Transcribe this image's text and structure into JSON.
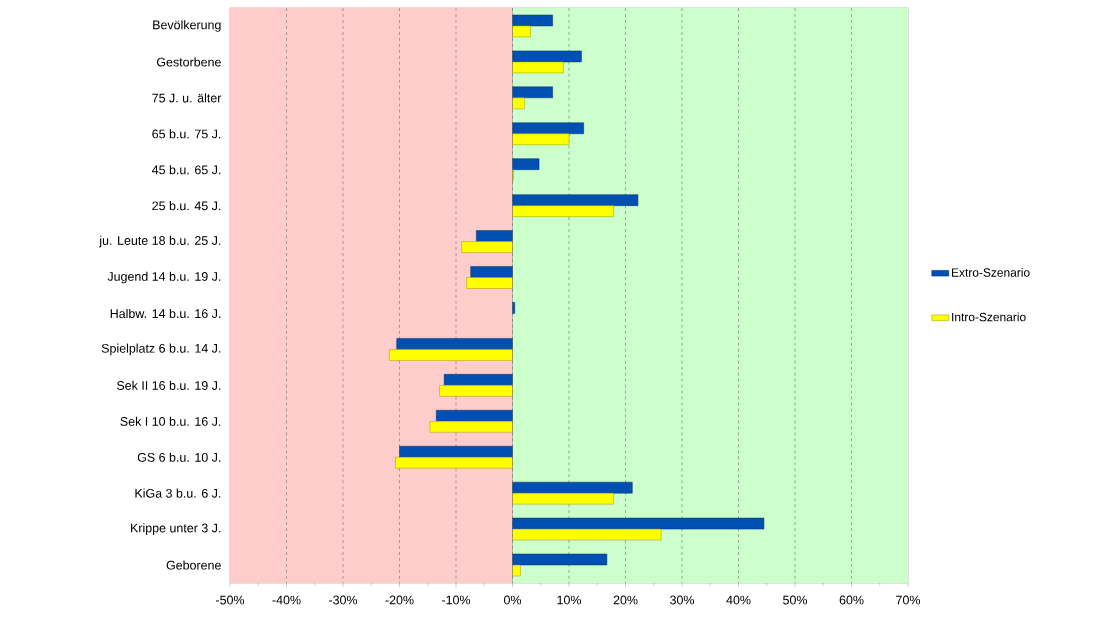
{
  "chart_data": {
    "type": "bar",
    "orientation": "horizontal",
    "categories": [
      "Bevölkerung",
      "Gestorbene",
      "75 J. u. älter",
      "65 b.u. 75 J.",
      "45 b.u. 65 J.",
      "25 b.u. 45 J.",
      "ju. Leute 18 b.u. 25 J.",
      "Jugend 14 b.u. 19 J.",
      "Halbw. 14 b.u. 16 J.",
      "Spielplatz 6 b.u. 14 J.",
      "Sek II 16 b.u. 19 J.",
      "Sek I 10 b.u. 16 J.",
      "GS 6 b.u. 10 J.",
      "KiGa 3 b.u. 6 J.",
      "Krippe unter 3 J.",
      "Geborene"
    ],
    "series": [
      {
        "name": "Extro-Szenario",
        "color": "#0050b4",
        "values": [
          7.1,
          12.2,
          7.1,
          12.6,
          4.7,
          22.2,
          -6.4,
          -7.4,
          0.4,
          -20.5,
          -12.1,
          -13.5,
          -20.0,
          21.2,
          44.5,
          16.7
        ]
      },
      {
        "name": "Intro-Szenario",
        "color": "#ffff00",
        "values": [
          3.2,
          9.0,
          2.1,
          10.0,
          0.2,
          17.9,
          -9.0,
          -8.1,
          null,
          -21.8,
          -12.9,
          -14.6,
          -20.7,
          17.9,
          26.3,
          1.4
        ]
      }
    ],
    "xlim": [
      -50,
      70
    ],
    "xticks": [
      {
        "value": -50,
        "label": "-50%"
      },
      {
        "value": -40,
        "label": "-40%"
      },
      {
        "value": -30,
        "label": "-30%"
      },
      {
        "value": -20,
        "label": "-20%"
      },
      {
        "value": -10,
        "label": "-10%"
      },
      {
        "value": 0,
        "label": "0%"
      },
      {
        "value": 10,
        "label": "10%"
      },
      {
        "value": 20,
        "label": "20%"
      },
      {
        "value": 30,
        "label": "30%"
      },
      {
        "value": 40,
        "label": "40%"
      },
      {
        "value": 50,
        "label": "50%"
      },
      {
        "value": 60,
        "label": "60%"
      },
      {
        "value": 70,
        "label": "70%"
      }
    ],
    "bands": [
      {
        "axis": "x",
        "from": -50,
        "to": 0,
        "color": "#ffcccc"
      },
      {
        "axis": "x",
        "from": 0,
        "to": 70,
        "color": "#ccffcc"
      }
    ],
    "grid": "x",
    "legend": "right"
  }
}
